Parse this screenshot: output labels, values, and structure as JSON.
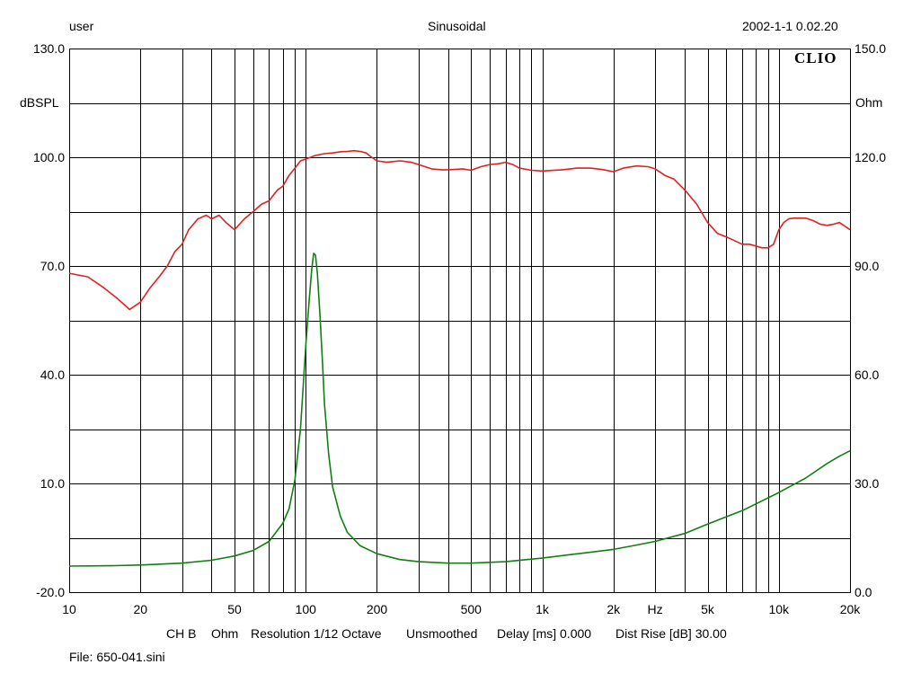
{
  "header": {
    "user": "user",
    "mode": "Sinusoidal",
    "datetime": "2002-1-1 0.02.20"
  },
  "logo_text": "CLIO",
  "footer": {
    "channel": "CH B",
    "unit": "Ohm",
    "resolution": "Resolution 1/12 Octave",
    "smoothing": "Unsmoothed",
    "delay": "Delay [ms] 0.000",
    "dist_rise": "Dist Rise [dB] 30.00",
    "file": "File: 650-041.sini"
  },
  "chart_data": {
    "type": "line",
    "x_scale": "log",
    "xlim": [
      10,
      20000
    ],
    "x_tick_labels": [
      "10",
      "20",
      "50",
      "100",
      "200",
      "500",
      "1k",
      "2k",
      "Hz",
      "5k",
      "10k",
      "20k"
    ],
    "x_unit": "Hz",
    "y_left": {
      "label": "dBSPL",
      "ylim": [
        -20,
        130
      ],
      "tick_labels": [
        "130.0",
        "100.0",
        "70.0",
        "40.0",
        "10.0",
        "-20.0"
      ]
    },
    "y_right": {
      "label": "Ohm",
      "ylim": [
        0,
        150
      ],
      "tick_labels": [
        "150.0",
        "120.0",
        "90.0",
        "60.0",
        "30.0",
        "0.0"
      ]
    },
    "grid": true,
    "colors": {
      "spl": "#e02020",
      "impedance": "#108010",
      "grid": "#000000"
    },
    "series": [
      {
        "axis": "left",
        "x": [
          10,
          12,
          14,
          16,
          18,
          20,
          22,
          24,
          26,
          28,
          30,
          32,
          35,
          38,
          40,
          43,
          46,
          50,
          55,
          60,
          65,
          70,
          76,
          80,
          85,
          90,
          95,
          100,
          105,
          110,
          120,
          130,
          140,
          150,
          160,
          170,
          180,
          190,
          200,
          220,
          250,
          280,
          300,
          340,
          380,
          420,
          460,
          500,
          550,
          600,
          650,
          700,
          750,
          800,
          900,
          1000,
          1200,
          1400,
          1600,
          1800,
          2000,
          2200,
          2500,
          2800,
          3000,
          3300,
          3600,
          4000,
          4500,
          5000,
          5500,
          6000,
          6500,
          7000,
          7500,
          8000,
          8500,
          9000,
          9500,
          10000,
          10500,
          11000,
          11500,
          12000,
          13000,
          14000,
          15000,
          16000,
          17000,
          18000,
          19000,
          20000
        ],
        "values": [
          68,
          67,
          64,
          61,
          58,
          60,
          64,
          67,
          70,
          74,
          76,
          80,
          83,
          84,
          83,
          84,
          82,
          80,
          83,
          85,
          87,
          88,
          91,
          92,
          95,
          97,
          99,
          99.5,
          100,
          100.5,
          101,
          101.2,
          101.5,
          101.6,
          101.8,
          101.6,
          101.2,
          100,
          99,
          98.6,
          99,
          98.6,
          98,
          96.8,
          96.5,
          96.6,
          96.8,
          96.4,
          97.4,
          98,
          98.2,
          98.6,
          98,
          97,
          96.4,
          96.2,
          96.5,
          97,
          97,
          96.6,
          96,
          97,
          97.6,
          97.4,
          96.8,
          95,
          94,
          91,
          87,
          82,
          79,
          78,
          77,
          76,
          76,
          75.5,
          75,
          75,
          76,
          80,
          82,
          83,
          83.2,
          83.2,
          83.2,
          82.5,
          81.5,
          81.2,
          81.5,
          82,
          81,
          80
        ]
      },
      {
        "axis": "right",
        "x": [
          10,
          15,
          20,
          30,
          40,
          50,
          60,
          70,
          80,
          85,
          90,
          95,
          100,
          103,
          106,
          108,
          110,
          112,
          115,
          118,
          120,
          125,
          130,
          140,
          150,
          170,
          200,
          250,
          300,
          400,
          500,
          700,
          1000,
          1500,
          2000,
          2500,
          3000,
          4000,
          5000,
          7000,
          10000,
          13000,
          16000,
          18000,
          20000
        ],
        "values": [
          7.2,
          7.3,
          7.5,
          8,
          8.8,
          10,
          11.5,
          14,
          19,
          23,
          31,
          45,
          68,
          79,
          89,
          93.5,
          93,
          88,
          76,
          62,
          52,
          38,
          29,
          21,
          16.5,
          12.8,
          10.6,
          9,
          8.4,
          8,
          8,
          8.4,
          9.4,
          10.8,
          11.8,
          13,
          14,
          16.2,
          18.8,
          22.5,
          27.5,
          31.5,
          35.5,
          37.5,
          39
        ]
      }
    ]
  }
}
